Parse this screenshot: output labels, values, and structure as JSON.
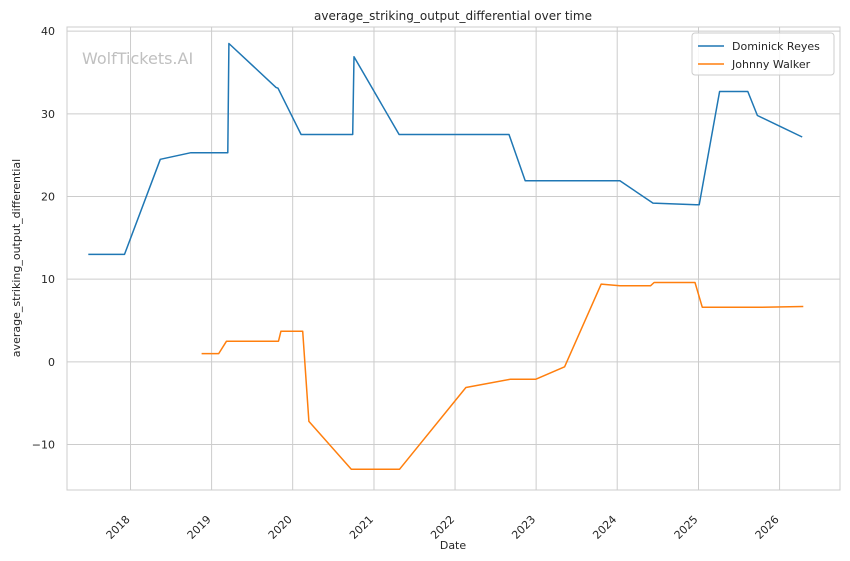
{
  "chart_data": {
    "type": "line",
    "title": "average_striking_output_differential over time",
    "xlabel": "Date",
    "ylabel": "average_striking_output_differential",
    "watermark": "WolfTickets.AI",
    "grid": true,
    "legend_position": "top-right",
    "xlim": [
      "2017-03-21",
      "2026-09-30"
    ],
    "ylim": [
      -15.5,
      40.5
    ],
    "x_ticks": [
      "2018",
      "2019",
      "2020",
      "2021",
      "2022",
      "2023",
      "2024",
      "2025",
      "2026"
    ],
    "y_ticks": [
      -10,
      0,
      10,
      20,
      30,
      40
    ],
    "y_tick_labels": [
      "−10",
      "0",
      "10",
      "20",
      "30",
      "40"
    ],
    "series": [
      {
        "name": "Dominick Reyes",
        "color": "#1f77b4",
        "points": [
          [
            "2017-06-25",
            13.0
          ],
          [
            "2017-12-05",
            13.0
          ],
          [
            "2018-05-15",
            24.5
          ],
          [
            "2018-09-30",
            25.3
          ],
          [
            "2019-03-15",
            25.3
          ],
          [
            "2019-03-20",
            38.5
          ],
          [
            "2019-10-18",
            33.2
          ],
          [
            "2019-10-27",
            33.1
          ],
          [
            "2020-02-08",
            27.5
          ],
          [
            "2020-09-27",
            27.5
          ],
          [
            "2020-10-03",
            36.9
          ],
          [
            "2021-04-24",
            27.5
          ],
          [
            "2022-09-01",
            27.5
          ],
          [
            "2022-11-13",
            21.9
          ],
          [
            "2024-01-13",
            21.9
          ],
          [
            "2024-06-10",
            19.2
          ],
          [
            "2024-12-21",
            19.0
          ],
          [
            "2025-01-04",
            19.0
          ],
          [
            "2025-04-06",
            32.7
          ],
          [
            "2025-08-11",
            32.7
          ],
          [
            "2025-09-23",
            29.8
          ],
          [
            "2026-04-13",
            27.2
          ]
        ]
      },
      {
        "name": "Johnny Walker",
        "color": "#ff7f0e",
        "points": [
          [
            "2018-11-17",
            1.0
          ],
          [
            "2019-02-02",
            1.0
          ],
          [
            "2019-03-09",
            2.5
          ],
          [
            "2019-10-29",
            2.5
          ],
          [
            "2019-11-09",
            3.7
          ],
          [
            "2020-02-15",
            3.7
          ],
          [
            "2020-03-14",
            -7.2
          ],
          [
            "2020-09-21",
            -13.0
          ],
          [
            "2021-04-26",
            -13.0
          ],
          [
            "2022-02-19",
            -3.1
          ],
          [
            "2022-09-08",
            -2.1
          ],
          [
            "2022-12-31",
            -2.1
          ],
          [
            "2023-05-09",
            -0.6
          ],
          [
            "2023-10-21",
            9.4
          ],
          [
            "2024-01-13",
            9.2
          ],
          [
            "2024-05-30",
            9.2
          ],
          [
            "2024-06-15",
            9.6
          ],
          [
            "2024-12-16",
            9.6
          ],
          [
            "2025-01-18",
            6.6
          ],
          [
            "2025-09-30",
            6.6
          ],
          [
            "2026-04-18",
            6.7
          ]
        ]
      }
    ]
  }
}
